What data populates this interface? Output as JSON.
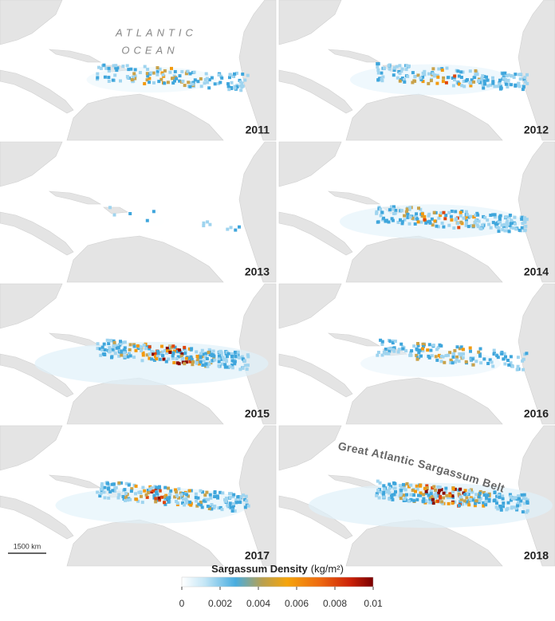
{
  "panels": [
    {
      "year": "2011"
    },
    {
      "year": "2012"
    },
    {
      "year": "2013"
    },
    {
      "year": "2014"
    },
    {
      "year": "2015"
    },
    {
      "year": "2016"
    },
    {
      "year": "2017"
    },
    {
      "year": "2018"
    }
  ],
  "annotations": {
    "ocean_label_1": "ATLANTIC",
    "ocean_label_2": "OCEAN",
    "belt_label": "Great Atlantic Sargassum Belt"
  },
  "scale_bar": "1500 km",
  "legend": {
    "title": "Sargassum Density",
    "unit": "(kg/m²)",
    "range": [
      0,
      0.01
    ],
    "ticks": [
      0,
      0.002,
      0.004,
      0.006,
      0.008,
      0.01
    ]
  }
}
